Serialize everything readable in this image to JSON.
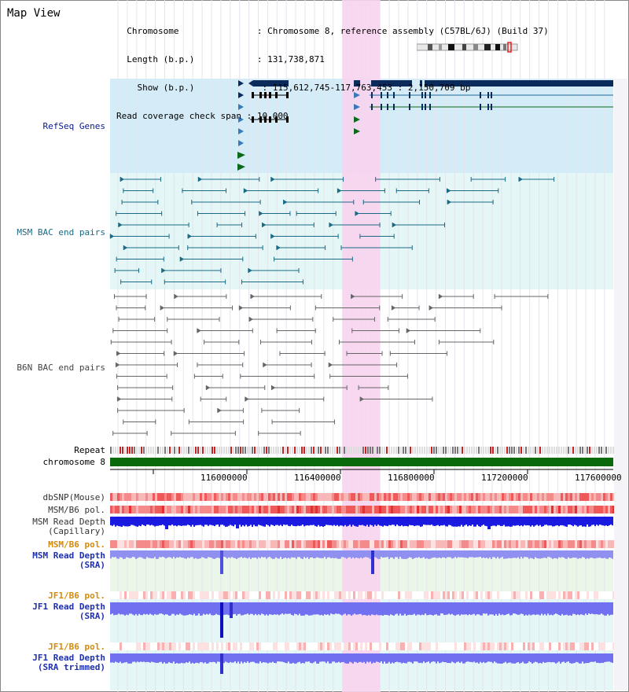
{
  "view": {
    "title": "Map View"
  },
  "info": {
    "chromosome_key": "Chromosome",
    "chromosome_val": ": Chromosome 8, reference assembly (C57BL/6J) (Build 37)",
    "length_key": "Length (b.p.)",
    "length_val": ": 131,738,871",
    "show_key": "Show (b.p.)",
    "show_val": ": 115,612,745-117,763,453 : 2,150,709 bp",
    "coverage_key": "Read coverage check span",
    "coverage_val": ": 10,000"
  },
  "tracks": {
    "refseq": "RefSeq Genes",
    "msm_bac": "MSM BAC end pairs",
    "b6n_bac": "B6N BAC end pairs",
    "repeat": "Repeat",
    "chromosome": "chromosome 8",
    "dbsnp": "dbSNP(Mouse)",
    "msm_b6_pol_1": "MSM/B6 pol.",
    "msm_read_depth_cap_1": "MSM Read Depth",
    "msm_read_depth_cap_2": "(Capillary)",
    "msm_b6_pol_2": "MSM/B6 pol.",
    "msm_read_depth_sra_1": "MSM Read Depth",
    "msm_read_depth_sra_2": "(SRA)",
    "jf1_b6_pol_1": "JF1/B6 pol.",
    "jf1_read_depth_sra_1": "JF1 Read Depth",
    "jf1_read_depth_sra_2": "(SRA)",
    "jf1_b6_pol_2": "JF1/B6 pol.",
    "jf1_read_depth_trim_1": "JF1 Read Depth",
    "jf1_read_depth_trim_2": "(SRA trimmed)"
  },
  "axis": {
    "ticks": [
      "116000000",
      "116400000",
      "116800000",
      "117200000",
      "117600000"
    ]
  },
  "colors": {
    "refseq_bg": "#d4ecf7",
    "msm_bg": "#e4f6f6",
    "gene_dark": "#0a2a5c",
    "gene_green": "#0a6a1a",
    "gene_light": "#3a7ab8",
    "highlight": "#f7d4ee",
    "chrom_bar": "#0a6a0a",
    "depth_blue": "#2020e0",
    "depth_light": "#8080f8"
  }
}
